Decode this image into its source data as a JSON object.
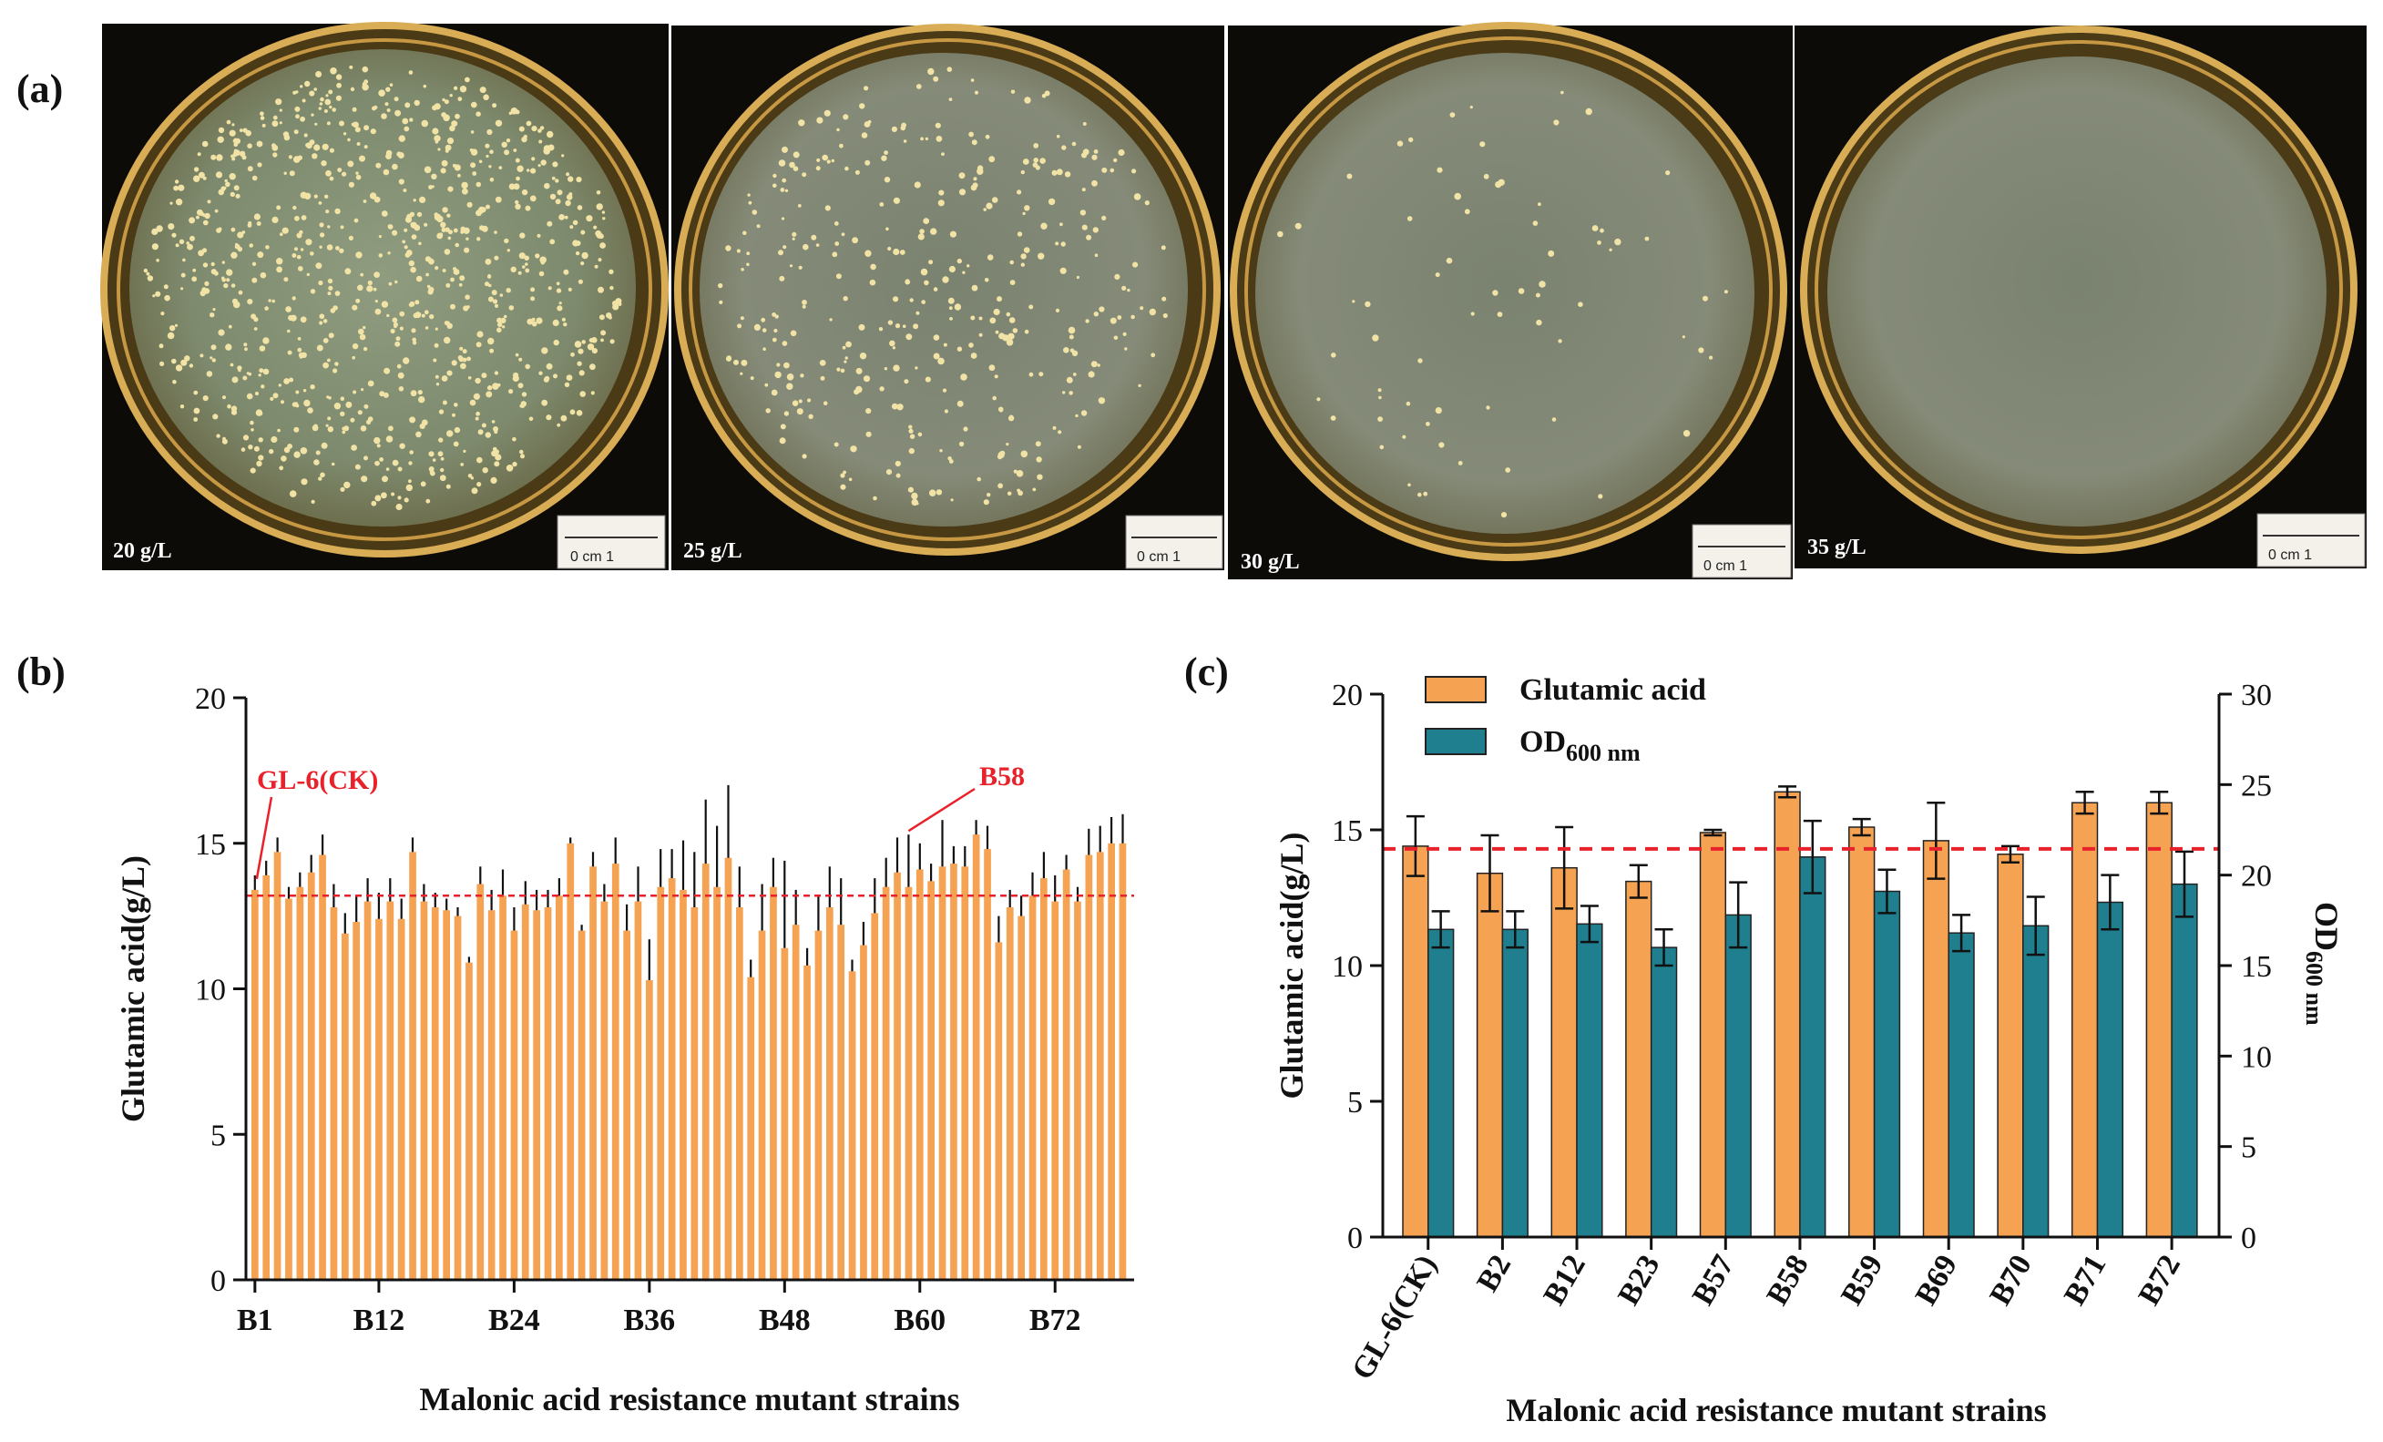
{
  "figure": {
    "panel_a_label": "(a)",
    "panel_b_label": "(b)",
    "panel_c_label": "(c)"
  },
  "plates": [
    {
      "label": "20 g/L",
      "colonies": 900,
      "ruler_text": "0 cm 1"
    },
    {
      "label": "25 g/L",
      "colonies": 380,
      "ruler_text": "0 cm 1"
    },
    {
      "label": "30 g/L",
      "colonies": 70,
      "ruler_text": "0 cm 1"
    },
    {
      "label": "35 g/L",
      "colonies": 0,
      "ruler_text": "0 cm 1"
    }
  ],
  "colors": {
    "orange": "#f5a252",
    "teal": "#1f7f8e",
    "dashed": "#e8212b",
    "annot": "#e8212b"
  },
  "chart_data": [
    {
      "type": "bar",
      "panel": "b",
      "xlabel": "Malonic acid resistance mutant strains",
      "ylabel": "Glutamic acid(g/L)",
      "ylim": [
        0,
        20
      ],
      "yticks": [
        0,
        5,
        10,
        15,
        20
      ],
      "xtick_labels": [
        "B1",
        "B12",
        "B24",
        "B36",
        "B48",
        "B60",
        "B72"
      ],
      "reference_line": 13.2,
      "annotations": [
        {
          "text": "GL-6(CK)",
          "target_index": 0
        },
        {
          "text": "B58",
          "target_index": 58
        }
      ],
      "values": [
        13.4,
        13.9,
        14.7,
        13.1,
        13.5,
        14.0,
        14.6,
        12.8,
        11.9,
        12.3,
        13.0,
        12.4,
        13.0,
        12.4,
        14.7,
        13.0,
        12.8,
        12.7,
        12.5,
        10.9,
        13.6,
        12.7,
        13.2,
        12.0,
        12.9,
        12.7,
        12.8,
        13.2,
        15.0,
        12.0,
        14.2,
        13.0,
        14.3,
        12.0,
        13.0,
        10.3,
        13.5,
        13.8,
        13.4,
        12.8,
        14.3,
        13.5,
        14.5,
        12.8,
        10.4,
        12.0,
        13.5,
        11.4,
        12.2,
        10.8,
        12.0,
        12.8,
        12.2,
        10.6,
        11.5,
        12.6,
        13.5,
        14.0,
        13.5,
        14.1,
        13.7,
        14.2,
        14.3,
        14.2,
        15.3,
        14.8,
        11.6,
        12.8,
        12.5,
        13.2,
        13.8,
        13.0,
        14.1,
        13.0,
        14.6,
        14.7,
        15.0,
        15.0
      ],
      "errors": [
        0.5,
        0.5,
        0.5,
        0.4,
        0.5,
        0.6,
        0.7,
        0.8,
        0.7,
        0.9,
        0.8,
        0.9,
        0.8,
        0.7,
        0.5,
        0.6,
        0.5,
        0.4,
        0.3,
        0.2,
        0.6,
        0.7,
        0.9,
        0.8,
        0.8,
        0.7,
        0.6,
        0.6,
        0.2,
        0.2,
        0.5,
        0.6,
        0.9,
        0.9,
        1.2,
        1.4,
        1.3,
        1.0,
        1.7,
        1.9,
        2.2,
        2.1,
        2.5,
        1.4,
        0.6,
        1.6,
        1.0,
        3.0,
        1.2,
        0.6,
        1.2,
        1.4,
        1.6,
        0.4,
        0.8,
        1.2,
        1.0,
        1.2,
        1.8,
        0.9,
        0.6,
        1.6,
        0.6,
        0.7,
        0.5,
        0.8,
        0.9,
        0.6,
        0.7,
        0.8,
        0.9,
        0.9,
        0.5,
        0.5,
        0.9,
        0.9,
        0.9,
        1.0
      ]
    },
    {
      "type": "bar",
      "panel": "c",
      "xlabel": "Malonic acid resistance mutant strains",
      "ylabel": "Glutamic acid(g/L)",
      "ylabel_right_main": "OD",
      "ylabel_right_sub": "600 nm",
      "ylim": [
        0,
        20
      ],
      "ylim_right": [
        0,
        30
      ],
      "yticks": [
        0,
        5,
        10,
        15,
        20
      ],
      "yticks_right": [
        0,
        5,
        10,
        15,
        20,
        25,
        30
      ],
      "reference_line": 14.3,
      "categories": [
        "GL-6(CK)",
        "B2",
        "B12",
        "B23",
        "B57",
        "B58",
        "B59",
        "B69",
        "B70",
        "B71",
        "B72"
      ],
      "series": [
        {
          "name": "Glutamic acid",
          "axis": "left",
          "values": [
            14.4,
            13.4,
            13.6,
            13.1,
            14.9,
            16.4,
            15.1,
            14.6,
            14.1,
            16.0,
            16.0
          ],
          "errors": [
            1.1,
            1.4,
            1.5,
            0.6,
            0.1,
            0.2,
            0.3,
            1.4,
            0.3,
            0.4,
            0.4
          ]
        },
        {
          "name": "OD",
          "name_sub": "600 nm",
          "axis": "right",
          "values": [
            17.0,
            17.0,
            17.3,
            16.0,
            17.8,
            21.0,
            19.1,
            16.8,
            17.2,
            18.5,
            19.5
          ],
          "errors": [
            1.0,
            1.0,
            1.0,
            1.0,
            1.8,
            2.0,
            1.2,
            1.0,
            1.6,
            1.5,
            1.8
          ]
        }
      ]
    }
  ]
}
